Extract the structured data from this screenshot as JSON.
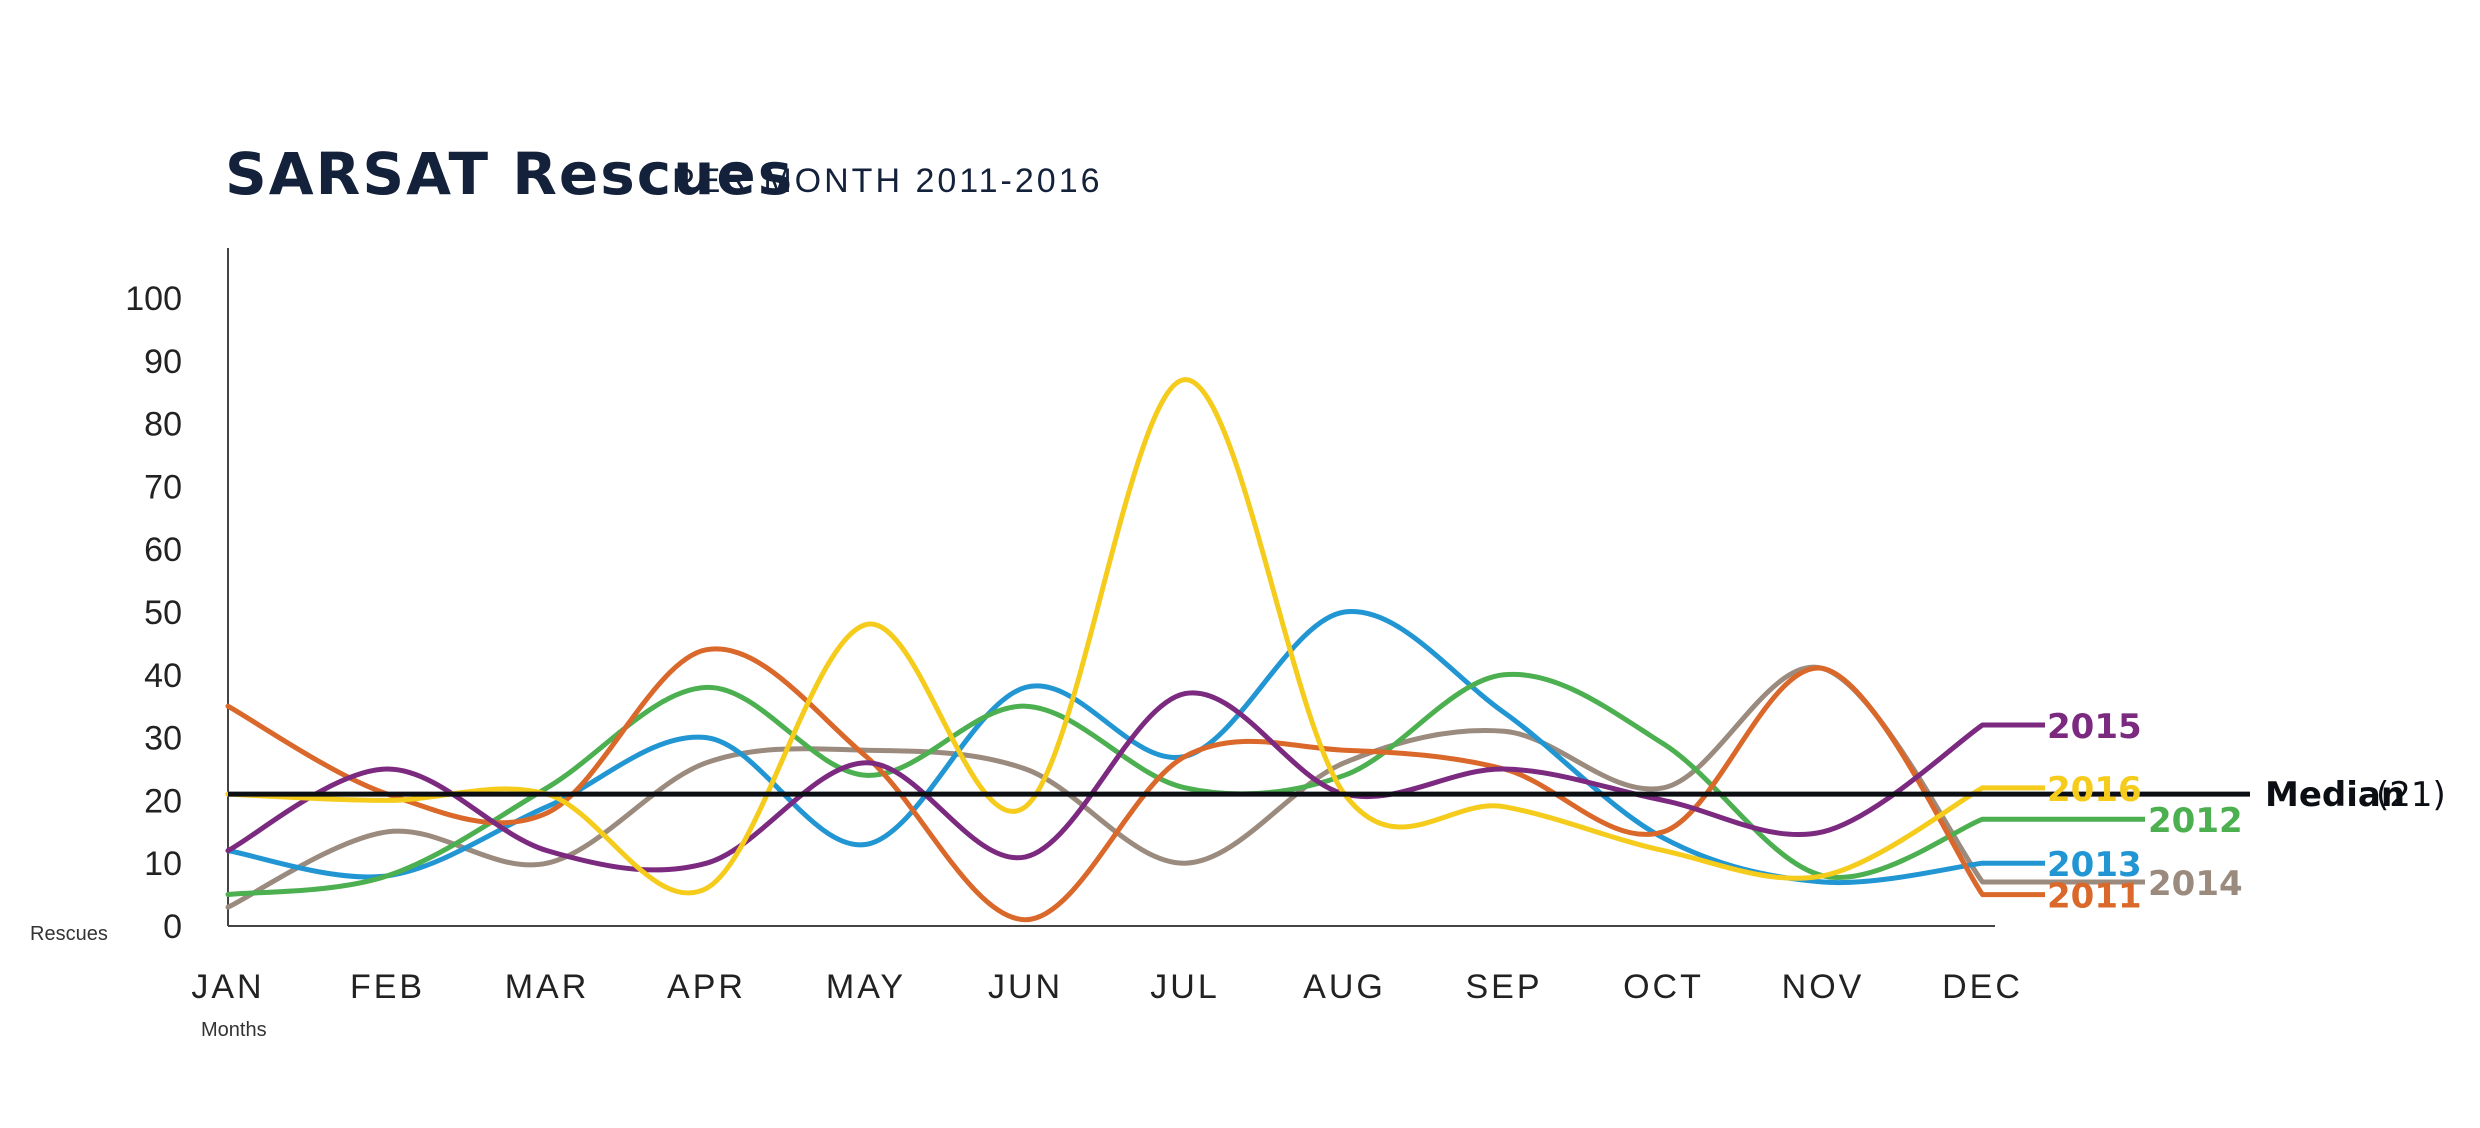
{
  "chart_data": {
    "type": "line",
    "title": "SARSAT Rescues",
    "subtitle": "PER MONTH 2011-2016",
    "xlabel": "Months",
    "ylabel": "Rescues",
    "categories": [
      "JAN",
      "FEB",
      "MAR",
      "APR",
      "MAY",
      "JUN",
      "JUL",
      "AUG",
      "SEP",
      "OCT",
      "NOV",
      "DEC"
    ],
    "yticks": [
      "0",
      "10",
      "20",
      "30",
      "40",
      "50",
      "60",
      "70",
      "80",
      "90",
      "100"
    ],
    "ylim": [
      0,
      100
    ],
    "grid": false,
    "median": {
      "label": "Median",
      "value_text": "(21)",
      "value": 21
    },
    "series": [
      {
        "name": "2011",
        "color": "#d9682a",
        "values": [
          35,
          21,
          18,
          44,
          27,
          1,
          27,
          28,
          25,
          15,
          41,
          5
        ]
      },
      {
        "name": "2012",
        "color": "#4caf50",
        "values": [
          5,
          8,
          22,
          38,
          24,
          35,
          22,
          24,
          40,
          29,
          8,
          17
        ]
      },
      {
        "name": "2013",
        "color": "#2196d3",
        "values": [
          12,
          8,
          19,
          30,
          13,
          38,
          27,
          50,
          34,
          14,
          7,
          10
        ]
      },
      {
        "name": "2014",
        "color": "#9b8b7e",
        "values": [
          3,
          15,
          10,
          26,
          28,
          25,
          10,
          26,
          31,
          22,
          41,
          7
        ]
      },
      {
        "name": "2015",
        "color": "#7b2a7f",
        "values": [
          12,
          25,
          12,
          10,
          26,
          11,
          37,
          21,
          25,
          20,
          15,
          32
        ]
      },
      {
        "name": "2016",
        "color": "#f5cc1b",
        "values": [
          21,
          20,
          21,
          6,
          48,
          19,
          87,
          21,
          19,
          12,
          8,
          22
        ]
      }
    ]
  }
}
